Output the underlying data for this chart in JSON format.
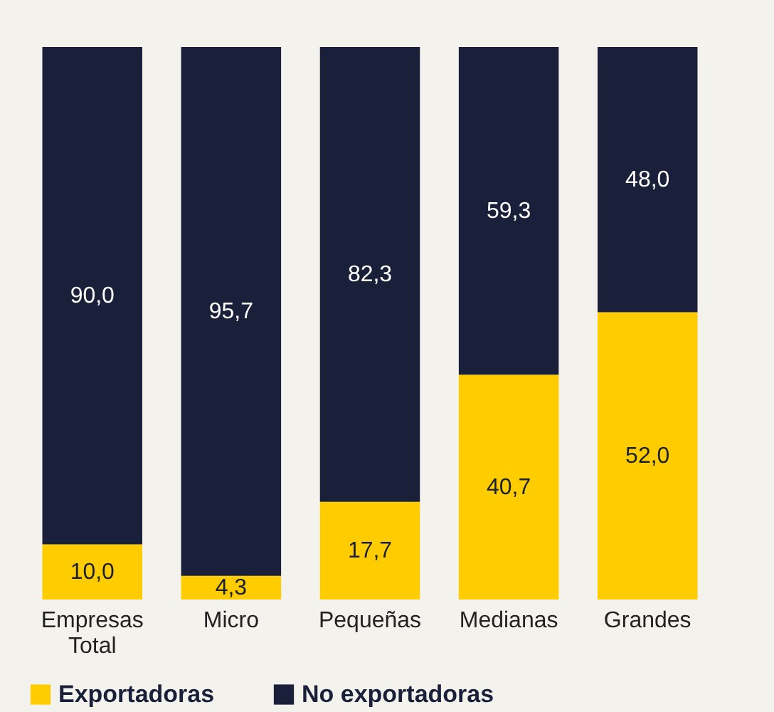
{
  "chart_data": {
    "type": "bar",
    "stacked": true,
    "legend": "bottom",
    "categories": [
      "Empresas Total",
      "Micro",
      "Pequeñas",
      "Medianas",
      "Grandes"
    ],
    "series": [
      {
        "name": "Exportadoras",
        "color": "#ffcc00",
        "values": [
          10.0,
          4.3,
          17.7,
          40.7,
          52.0
        ],
        "value_labels": [
          "10,0",
          "4,3",
          "17,7",
          "40,7",
          "52,0"
        ]
      },
      {
        "name": "No exportadoras",
        "color": "#1a2039",
        "values": [
          90.0,
          95.7,
          82.3,
          59.3,
          48.0
        ],
        "value_labels": [
          "90,0",
          "95,7",
          "82,3",
          "59,3",
          "48,0"
        ]
      }
    ]
  }
}
